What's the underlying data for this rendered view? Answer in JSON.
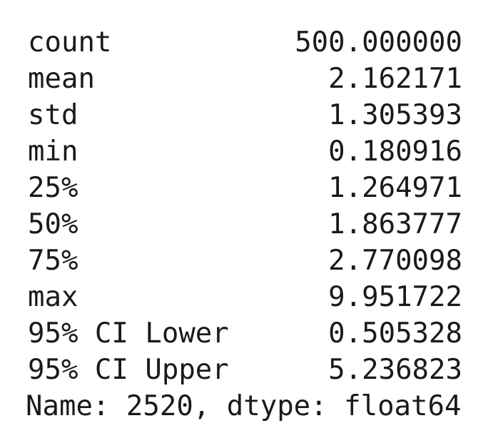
{
  "stats": [
    {
      "label": "count",
      "value": "500.000000"
    },
    {
      "label": "mean",
      "value": "2.162171"
    },
    {
      "label": "std",
      "value": "1.305393"
    },
    {
      "label": "min",
      "value": "0.180916"
    },
    {
      "label": "25%",
      "value": "1.264971"
    },
    {
      "label": "50%",
      "value": "1.863777"
    },
    {
      "label": "75%",
      "value": "2.770098"
    },
    {
      "label": "max",
      "value": "9.951722"
    },
    {
      "label": "95% CI Lower",
      "value": "0.505328"
    },
    {
      "label": "95% CI Upper",
      "value": "5.236823"
    }
  ],
  "footer": "Name: 2520, dtype: float64"
}
